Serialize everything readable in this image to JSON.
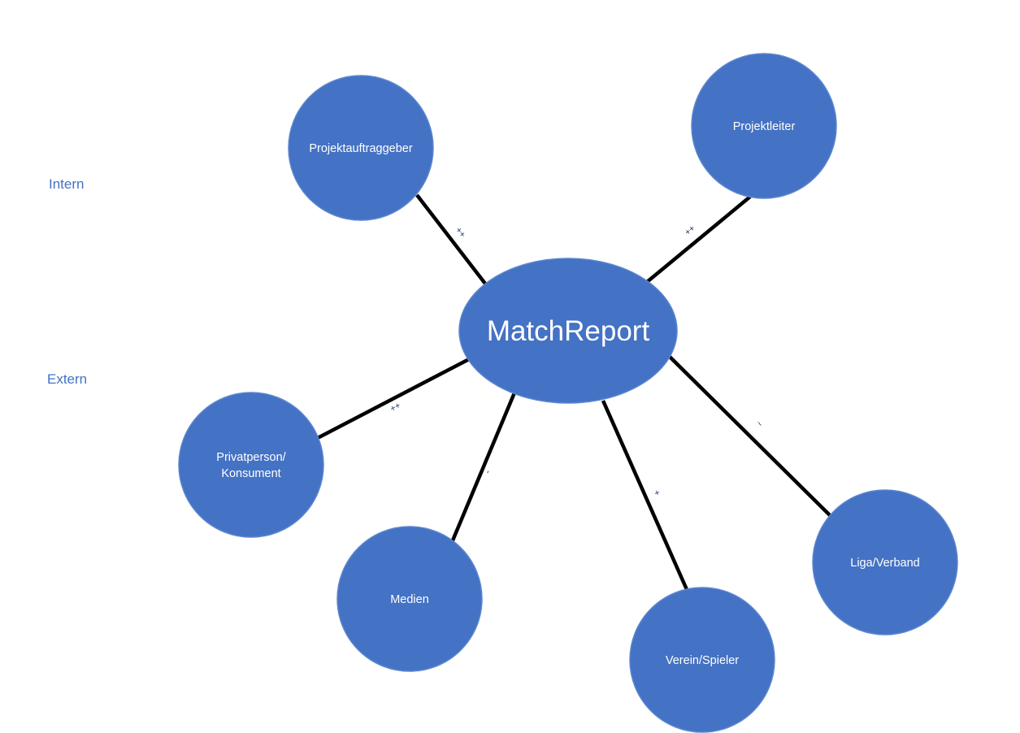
{
  "colors": {
    "node_fill": "#4472c4",
    "node_stroke": "#5b86cf",
    "node_text": "#ffffff",
    "side_label": "#4472c4",
    "edge": "#000000",
    "edge_label": "#1f3864"
  },
  "side_labels": {
    "intern": "Intern",
    "extern": "Extern"
  },
  "center": {
    "label": "MatchReport"
  },
  "nodes": {
    "projektauftraggeber": "Projektauftraggeber",
    "projektleiter": "Projektleiter",
    "privatperson_line1": "Privatperson/",
    "privatperson_line2": "Konsument",
    "medien": "Medien",
    "verein_spieler": "Verein/Spieler",
    "liga_verband": "Liga/Verband"
  },
  "edges": {
    "projektauftraggeber": "++",
    "projektleiter": "++",
    "privatperson": "++",
    "medien": "-",
    "verein_spieler": "+",
    "liga_verband": "~"
  }
}
